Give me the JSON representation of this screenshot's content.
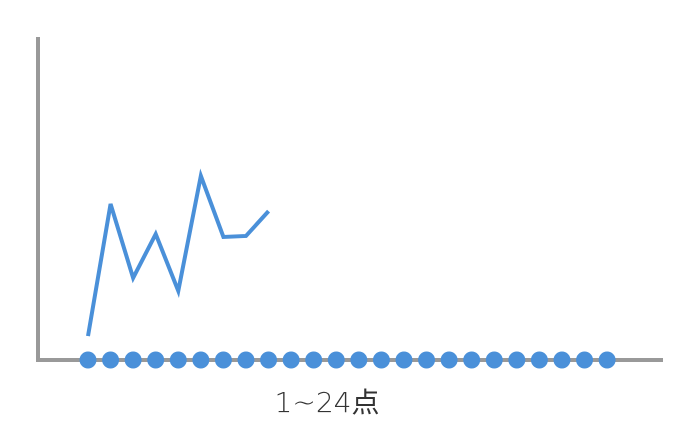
{
  "chart_data": {
    "type": "line",
    "xlabel": "1~24点",
    "categories": [
      null,
      null,
      null,
      null,
      null,
      null,
      null,
      null,
      null,
      null,
      null,
      null,
      null,
      null,
      null,
      null,
      null,
      null,
      null,
      null,
      null,
      null,
      null,
      null
    ],
    "series": [
      {
        "color": "#4a90d9",
        "values": [
          7.4,
          48.3,
          25.4,
          39,
          21.4,
          57,
          38.1,
          38.4,
          46.1,
          null,
          null,
          null,
          null,
          null,
          null,
          null,
          null,
          null,
          null,
          null,
          null,
          null,
          null,
          null
        ]
      }
    ],
    "ylim": [
      0,
      100
    ],
    "axis_color": "#999999",
    "grid": false
  }
}
